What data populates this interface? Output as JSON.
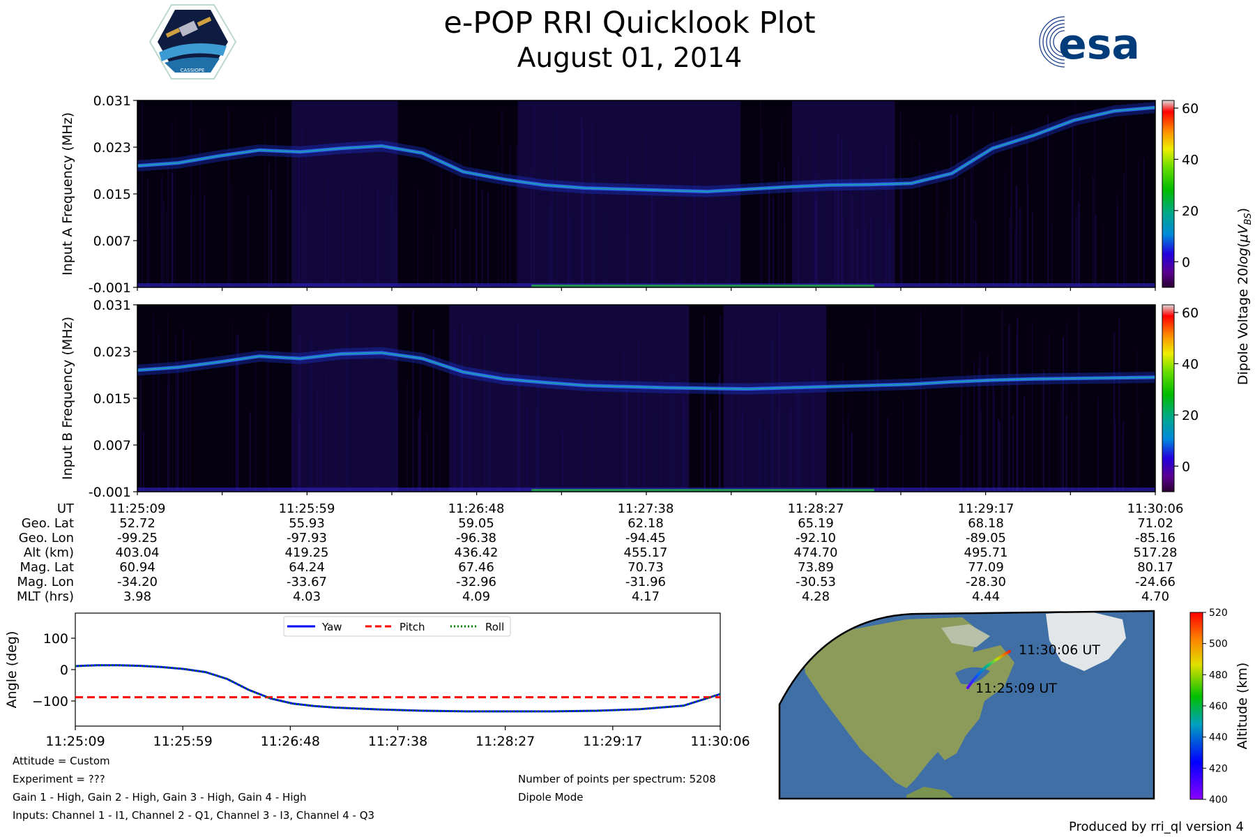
{
  "header": {
    "title": "e-POP RRI Quicklook Plot",
    "date": "August 01, 2014",
    "mission_logo_text": "CASSIOPE",
    "agency_logo_text": "esa"
  },
  "colors": {
    "spectrogram_bg": "#05000f",
    "yaw": "#0000ff",
    "pitch": "#ff0000",
    "roll": "#008000",
    "ocean": "#3f6fa5",
    "land": "#8c9a5a"
  },
  "chart_data": [
    {
      "type": "heatmap",
      "name": "spectrogram_a",
      "ylabel": "Input A Frequency (MHz)",
      "yticks": [
        "0.031",
        "0.023",
        "0.015",
        "0.007",
        "-0.001"
      ],
      "ylim": [
        -0.001,
        0.031
      ],
      "xlim_time": [
        "11:25:09",
        "11:30:06"
      ],
      "ridge_mhz": [
        0.0198,
        0.0203,
        0.0215,
        0.0225,
        0.0222,
        0.0228,
        0.0232,
        0.022,
        0.0188,
        0.0175,
        0.0165,
        0.016,
        0.0158,
        0.0156,
        0.0154,
        0.0158,
        0.0162,
        0.0165,
        0.0166,
        0.0168,
        0.0185,
        0.0228,
        0.025,
        0.0276,
        0.0292,
        0.0298
      ],
      "dense_bands_time": [
        [
          "11:25:54",
          "11:26:25"
        ],
        [
          "11:27:00",
          "11:28:05"
        ],
        [
          "11:28:20",
          "11:28:50"
        ]
      ]
    },
    {
      "type": "heatmap",
      "name": "spectrogram_b",
      "ylabel": "Input B Frequency (MHz)",
      "yticks": [
        "0.031",
        "0.023",
        "0.015",
        "0.007",
        "-0.001"
      ],
      "ylim": [
        -0.001,
        0.031
      ],
      "xlim_time": [
        "11:25:09",
        "11:30:06"
      ],
      "ridge_mhz": [
        0.0198,
        0.0203,
        0.0212,
        0.0222,
        0.0218,
        0.0226,
        0.0228,
        0.0218,
        0.0195,
        0.0183,
        0.0177,
        0.0172,
        0.017,
        0.0168,
        0.0167,
        0.0166,
        0.0168,
        0.017,
        0.0172,
        0.0174,
        0.0178,
        0.0181,
        0.0183,
        0.0184,
        0.0185,
        0.0186
      ],
      "dense_bands_time": [
        [
          "11:25:54",
          "11:26:25"
        ],
        [
          "11:26:40",
          "11:27:50"
        ],
        [
          "11:28:00",
          "11:28:30"
        ]
      ]
    },
    {
      "type": "colorbar",
      "name": "voltage_colorbar",
      "label": "Dipole Voltage 20log(μV_BS)",
      "ticks": [
        "60",
        "40",
        "20",
        "0"
      ],
      "range": [
        -10,
        63
      ]
    },
    {
      "type": "line",
      "name": "attitude",
      "ylabel": "Angle (deg)",
      "yticks": [
        "100",
        "0",
        "−100"
      ],
      "ylim": [
        -180,
        180
      ],
      "xlabels": [
        "11:25:09",
        "11:25:59",
        "11:26:48",
        "11:27:38",
        "11:28:27",
        "11:29:17",
        "11:30:06"
      ],
      "t_sec": [
        0,
        10,
        20,
        30,
        40,
        50,
        60,
        70,
        80,
        90,
        100,
        110,
        120,
        140,
        160,
        180,
        200,
        220,
        240,
        260,
        280,
        297
      ],
      "series": [
        {
          "name": "Yaw",
          "style": "solid",
          "values": [
            11,
            14,
            14,
            12,
            8,
            2,
            -8,
            -30,
            -65,
            -92,
            -108,
            -116,
            -121,
            -127,
            -131,
            -133,
            -133,
            -133,
            -131,
            -126,
            -115,
            -78
          ]
        },
        {
          "name": "Pitch",
          "style": "dashed",
          "values": [
            -88,
            -88,
            -88,
            -88,
            -88,
            -88,
            -88,
            -88,
            -88,
            -88,
            -88,
            -88,
            -88,
            -88,
            -88,
            -88,
            -88,
            -88,
            -88,
            -88,
            -88,
            -88
          ]
        },
        {
          "name": "Roll",
          "style": "dotted",
          "values": [
            11,
            14,
            14,
            12,
            8,
            2,
            -8,
            -30,
            -65,
            -92,
            -108,
            -116,
            -121,
            -127,
            -131,
            -133,
            -133,
            -133,
            -131,
            -126,
            -115,
            -78
          ]
        }
      ],
      "legend": [
        "Yaw",
        "Pitch",
        "Roll"
      ],
      "legend_position": "top-center"
    },
    {
      "type": "colorbar",
      "name": "altitude_colorbar",
      "label": "Altitude (km)",
      "ticks": [
        "520",
        "500",
        "480",
        "460",
        "440",
        "420",
        "400"
      ],
      "range": [
        400,
        520
      ]
    }
  ],
  "ephemeris": {
    "labels": [
      "UT",
      "Geo. Lat",
      "Geo. Lon",
      "Alt (km)",
      "Mag. Lat",
      "Mag. Lon",
      "MLT (hrs)"
    ],
    "columns": [
      [
        "11:25:09",
        "52.72",
        "-99.25",
        "403.04",
        "60.94",
        "-34.20",
        "3.98"
      ],
      [
        "11:25:59",
        "55.93",
        "-97.93",
        "419.25",
        "64.24",
        "-33.67",
        "4.03"
      ],
      [
        "11:26:48",
        "59.05",
        "-96.38",
        "436.42",
        "67.46",
        "-32.96",
        "4.09"
      ],
      [
        "11:27:38",
        "62.18",
        "-94.45",
        "455.17",
        "70.73",
        "-31.96",
        "4.17"
      ],
      [
        "11:28:27",
        "65.19",
        "-92.10",
        "474.70",
        "73.89",
        "-30.53",
        "4.28"
      ],
      [
        "11:29:17",
        "68.18",
        "-89.05",
        "495.71",
        "77.09",
        "-28.30",
        "4.44"
      ],
      [
        "11:30:06",
        "71.02",
        "-85.16",
        "517.28",
        "80.17",
        "-24.66",
        "4.70"
      ]
    ]
  },
  "map": {
    "start_label": "11:25:09 UT",
    "end_label": "11:30:06 UT"
  },
  "notes": {
    "left": [
      "Attitude = Custom",
      "Experiment = ???",
      "Gain 1 - High, Gain 2 - High, Gain 3 - High, Gain 4 - High",
      "Inputs: Channel 1 - I1, Channel 2 - Q1, Channel 3 - I3, Channel 4 - Q3"
    ],
    "right": [
      "Number of points per spectrum: 5208",
      "Dipole Mode"
    ],
    "footer": "Produced by rri_ql version 4"
  }
}
